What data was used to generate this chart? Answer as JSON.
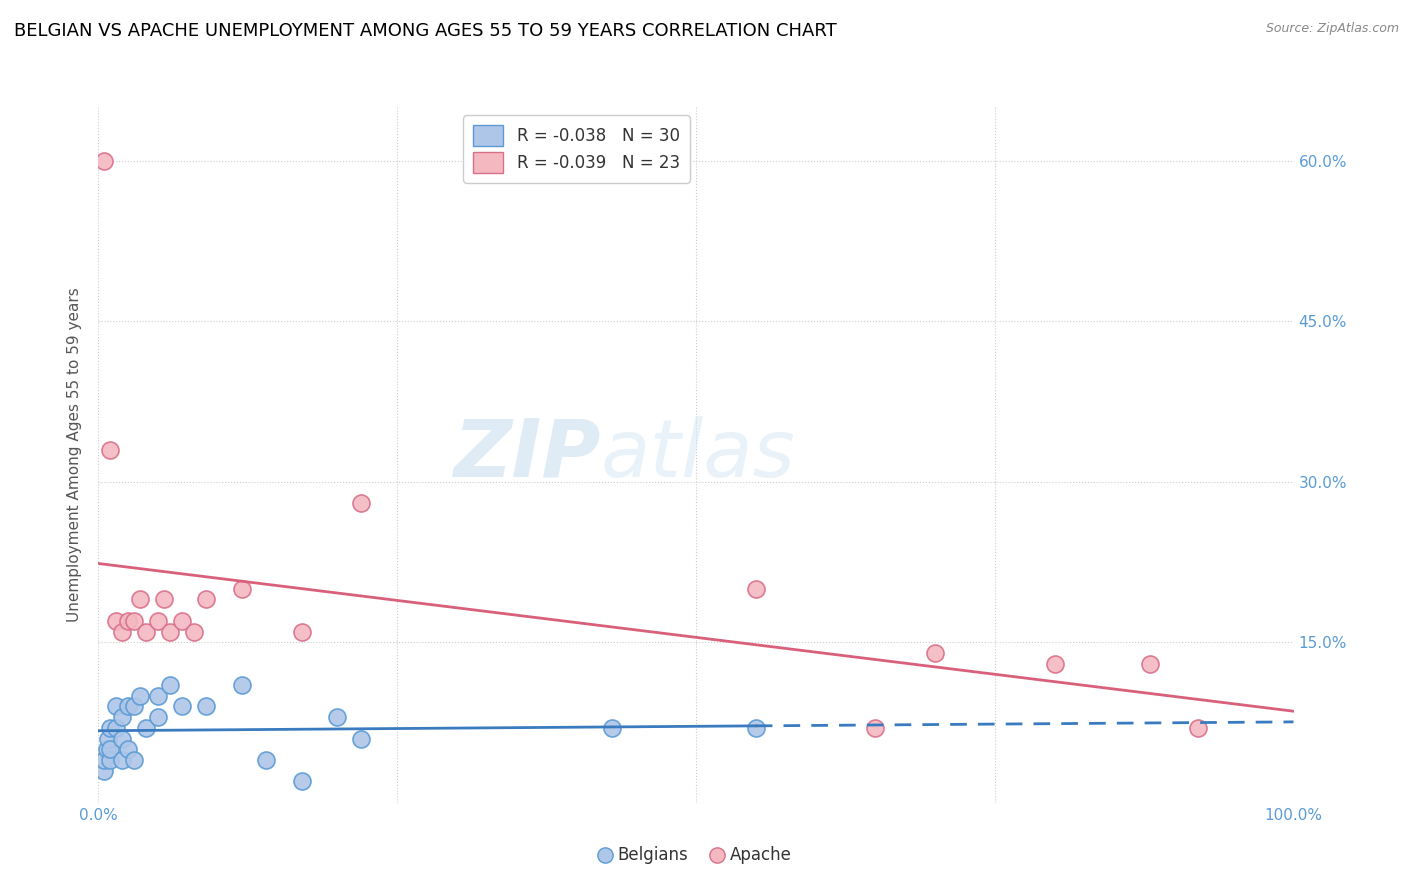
{
  "title": "BELGIAN VS APACHE UNEMPLOYMENT AMONG AGES 55 TO 59 YEARS CORRELATION CHART",
  "source": "Source: ZipAtlas.com",
  "ylabel": "Unemployment Among Ages 55 to 59 years",
  "xlim": [
    0,
    1.0
  ],
  "ylim": [
    0,
    0.65
  ],
  "xticks": [
    0.0,
    0.25,
    0.5,
    0.75,
    1.0
  ],
  "xticklabels": [
    "0.0%",
    "",
    "",
    "",
    "100.0%"
  ],
  "yticks": [
    0.0,
    0.15,
    0.3,
    0.45,
    0.6
  ],
  "right_yticklabels": [
    "",
    "15.0%",
    "30.0%",
    "45.0%",
    "60.0%"
  ],
  "belgian_color": "#aec6e8",
  "apache_color": "#f4b8c1",
  "belgian_edge": "#5b9bd5",
  "apache_edge": "#d9708a",
  "trend_belgian_color": "#3a7bbf",
  "trend_apache_color": "#d9607a",
  "legend_r_belgian": "R = -0.038",
  "legend_n_belgian": "N = 30",
  "legend_r_apache": "R = -0.039",
  "legend_n_apache": "N = 23",
  "watermark_zip": "ZIP",
  "watermark_atlas": "atlas",
  "title_fontsize": 13,
  "axis_fontsize": 11,
  "tick_fontsize": 11,
  "tick_color": "#5b9bd5",
  "belgian_x": [
    0.005,
    0.005,
    0.007,
    0.008,
    0.01,
    0.01,
    0.01,
    0.015,
    0.015,
    0.02,
    0.02,
    0.02,
    0.025,
    0.025,
    0.03,
    0.03,
    0.035,
    0.04,
    0.05,
    0.05,
    0.06,
    0.07,
    0.09,
    0.12,
    0.14,
    0.17,
    0.2,
    0.22,
    0.43,
    0.55
  ],
  "belgian_y": [
    0.03,
    0.04,
    0.05,
    0.06,
    0.04,
    0.05,
    0.07,
    0.07,
    0.09,
    0.04,
    0.06,
    0.08,
    0.05,
    0.09,
    0.04,
    0.09,
    0.1,
    0.07,
    0.1,
    0.08,
    0.11,
    0.09,
    0.09,
    0.11,
    0.04,
    0.02,
    0.08,
    0.06,
    0.07,
    0.07
  ],
  "apache_x": [
    0.005,
    0.01,
    0.015,
    0.02,
    0.025,
    0.03,
    0.035,
    0.04,
    0.05,
    0.055,
    0.06,
    0.07,
    0.08,
    0.09,
    0.12,
    0.17,
    0.22,
    0.55,
    0.65,
    0.7,
    0.8,
    0.88,
    0.92
  ],
  "apache_y": [
    0.6,
    0.33,
    0.17,
    0.16,
    0.17,
    0.17,
    0.19,
    0.16,
    0.17,
    0.19,
    0.16,
    0.17,
    0.16,
    0.19,
    0.2,
    0.16,
    0.28,
    0.2,
    0.07,
    0.14,
    0.13,
    0.13,
    0.07
  ],
  "background_color": "#ffffff",
  "grid_color": "#cccccc"
}
